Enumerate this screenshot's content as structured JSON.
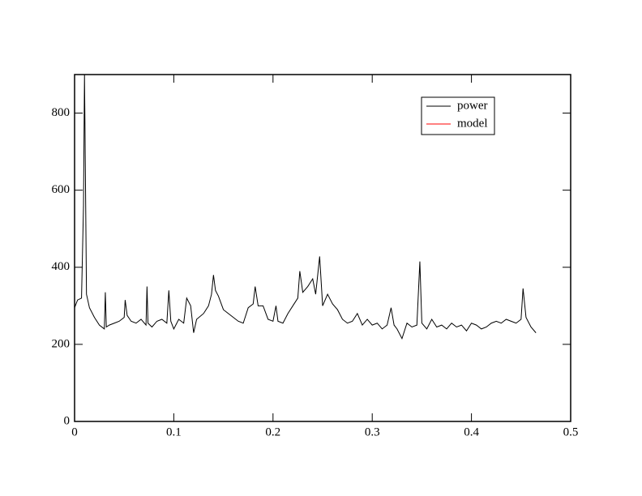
{
  "chart_data": {
    "type": "line",
    "x": [
      0.0,
      0.003,
      0.007,
      0.009,
      0.01,
      0.011,
      0.012,
      0.015,
      0.02,
      0.025,
      0.03,
      0.031,
      0.032,
      0.035,
      0.04,
      0.045,
      0.05,
      0.051,
      0.053,
      0.057,
      0.062,
      0.067,
      0.072,
      0.073,
      0.074,
      0.078,
      0.083,
      0.088,
      0.093,
      0.095,
      0.097,
      0.1,
      0.105,
      0.11,
      0.113,
      0.117,
      0.12,
      0.123,
      0.13,
      0.135,
      0.138,
      0.14,
      0.142,
      0.145,
      0.15,
      0.155,
      0.16,
      0.165,
      0.17,
      0.175,
      0.18,
      0.182,
      0.185,
      0.19,
      0.195,
      0.2,
      0.203,
      0.205,
      0.21,
      0.215,
      0.22,
      0.225,
      0.227,
      0.23,
      0.235,
      0.24,
      0.243,
      0.247,
      0.25,
      0.255,
      0.26,
      0.265,
      0.27,
      0.275,
      0.28,
      0.285,
      0.29,
      0.295,
      0.3,
      0.305,
      0.31,
      0.315,
      0.319,
      0.322,
      0.325,
      0.33,
      0.335,
      0.34,
      0.345,
      0.348,
      0.35,
      0.355,
      0.36,
      0.365,
      0.37,
      0.375,
      0.38,
      0.385,
      0.39,
      0.395,
      0.4,
      0.405,
      0.41,
      0.415,
      0.42,
      0.425,
      0.43,
      0.435,
      0.44,
      0.445,
      0.45,
      0.452,
      0.455,
      0.46,
      0.465
    ],
    "series": [
      {
        "name": "power",
        "color": "#000000",
        "values": [
          295,
          315,
          320,
          560,
          900,
          620,
          330,
          295,
          270,
          250,
          240,
          335,
          245,
          250,
          255,
          260,
          270,
          315,
          275,
          260,
          255,
          265,
          250,
          350,
          255,
          245,
          260,
          265,
          255,
          340,
          260,
          240,
          265,
          255,
          320,
          300,
          230,
          265,
          280,
          300,
          330,
          380,
          340,
          325,
          290,
          280,
          270,
          260,
          255,
          295,
          305,
          350,
          300,
          300,
          265,
          260,
          300,
          260,
          255,
          280,
          300,
          320,
          390,
          335,
          350,
          370,
          330,
          428,
          300,
          330,
          305,
          290,
          265,
          255,
          260,
          280,
          250,
          265,
          250,
          255,
          240,
          250,
          295,
          250,
          240,
          215,
          255,
          245,
          250,
          415,
          255,
          240,
          265,
          245,
          250,
          240,
          255,
          245,
          250,
          235,
          255,
          250,
          240,
          245,
          255,
          260,
          255,
          265,
          260,
          255,
          265,
          345,
          270,
          245,
          230
        ]
      },
      {
        "name": "model",
        "color": "#ff0000"
      }
    ],
    "xlim": [
      0,
      0.5
    ],
    "xticks": [
      0,
      0.1,
      0.2,
      0.3,
      0.4,
      0.5
    ],
    "ylim": [
      0,
      900
    ],
    "yticks": [
      0,
      200,
      400,
      600,
      800
    ],
    "legend": "upper right"
  }
}
